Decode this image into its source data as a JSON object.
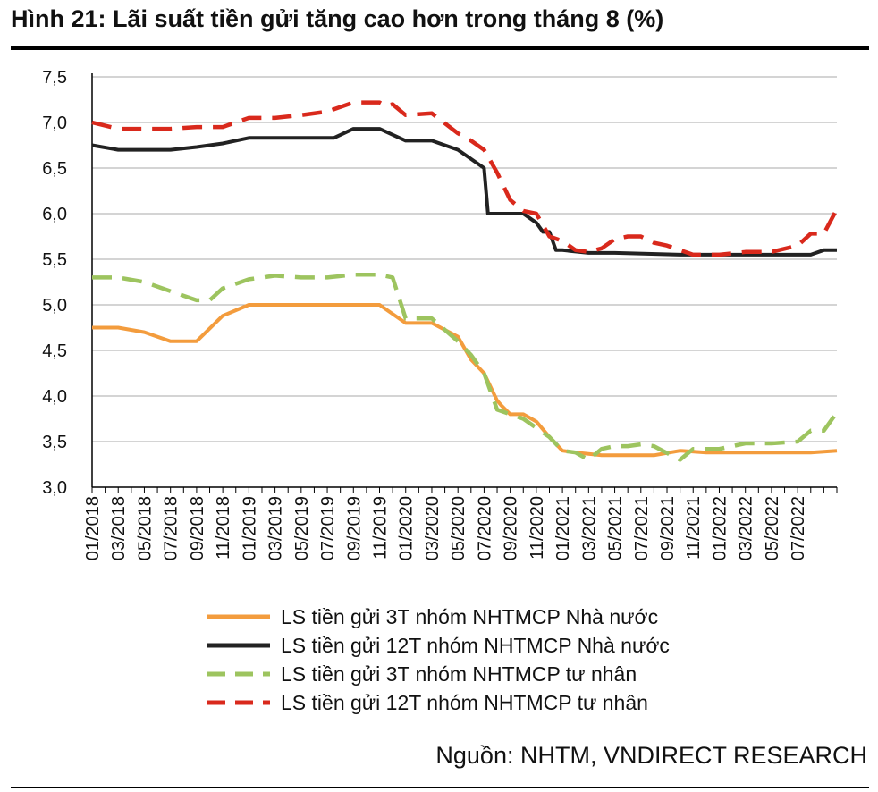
{
  "header": {
    "title": "Hình 21: Lãi suất tiền gửi tăng cao hơn trong tháng 8 (%)"
  },
  "footer": {
    "source": "Nguồn: NHTM, VNDIRECT RESEARCH"
  },
  "chart_data": {
    "type": "line",
    "ylim": [
      3.0,
      7.5
    ],
    "y_ticks": [
      "3,0",
      "3,5",
      "4,0",
      "4,5",
      "5,0",
      "5,5",
      "6,0",
      "6,5",
      "7,0",
      "7,5"
    ],
    "x_tick_labels": [
      "01/2018",
      "03/2018",
      "05/2018",
      "07/2018",
      "09/2018",
      "11/2018",
      "01/2019",
      "03/2019",
      "05/2019",
      "07/2019",
      "09/2019",
      "11/2019",
      "01/2020",
      "03/2020",
      "05/2020",
      "07/2020",
      "09/2020",
      "11/2020",
      "01/2021",
      "03/2021",
      "05/2021",
      "07/2021",
      "09/2021",
      "11/2021",
      "01/2022",
      "03/2022",
      "05/2022",
      "07/2022"
    ],
    "x_range": [
      0,
      57
    ],
    "grid": "horizontal",
    "legend_position": "bottom",
    "series": [
      {
        "name": "LS tiền gửi 3T nhóm NHTMCP Nhà nước",
        "color": "#f39c3d",
        "style": "solid",
        "x": [
          0,
          2,
          4,
          6,
          8,
          10,
          12,
          14,
          16,
          18,
          20,
          22,
          24,
          26,
          28,
          29,
          30,
          31,
          31.3,
          32,
          33,
          34,
          35,
          36,
          37,
          39,
          41,
          43,
          45,
          47,
          49,
          51,
          53,
          55,
          57
        ],
        "y": [
          4.75,
          4.75,
          4.7,
          4.6,
          4.6,
          4.88,
          5.0,
          5.0,
          5.0,
          5.0,
          5.0,
          5.0,
          4.8,
          4.8,
          4.65,
          4.4,
          4.25,
          3.95,
          3.9,
          3.8,
          3.8,
          3.72,
          3.55,
          3.4,
          3.38,
          3.35,
          3.35,
          3.35,
          3.4,
          3.38,
          3.38,
          3.38,
          3.38,
          3.38,
          3.4
        ]
      },
      {
        "name": "LS tiền gửi 12T nhóm NHTMCP Nhà nước",
        "color": "#222222",
        "style": "solid",
        "x": [
          0,
          2,
          6,
          8,
          10,
          12,
          14,
          16,
          18,
          18.5,
          20,
          22,
          24,
          26,
          28,
          30,
          30.3,
          31,
          33,
          34,
          34.5,
          35,
          35.5,
          36,
          38,
          40,
          45,
          50,
          55,
          56,
          57
        ],
        "y": [
          6.75,
          6.7,
          6.7,
          6.73,
          6.77,
          6.83,
          6.83,
          6.83,
          6.83,
          6.83,
          6.93,
          6.93,
          6.8,
          6.8,
          6.7,
          6.5,
          6.0,
          6.0,
          6.0,
          5.9,
          5.8,
          5.8,
          5.6,
          5.6,
          5.57,
          5.57,
          5.55,
          5.55,
          5.55,
          5.6,
          5.6
        ]
      },
      {
        "name": "LS tiền gửi 3T nhóm NHTMCP tư nhân",
        "color": "#9dc45f",
        "style": "dashed",
        "x": [
          0,
          2,
          4,
          6,
          8,
          9,
          10,
          12,
          14,
          16,
          18,
          20,
          22,
          23,
          24,
          26,
          28,
          29,
          30,
          31,
          32,
          33,
          35,
          36,
          37,
          38,
          39,
          40,
          41,
          42,
          43,
          45,
          46,
          48,
          50,
          52,
          54,
          55,
          56,
          57
        ],
        "y": [
          5.3,
          5.3,
          5.25,
          5.15,
          5.05,
          5.05,
          5.18,
          5.28,
          5.32,
          5.3,
          5.3,
          5.33,
          5.33,
          5.3,
          4.85,
          4.85,
          4.6,
          4.45,
          4.25,
          3.85,
          3.8,
          3.75,
          3.55,
          3.4,
          3.38,
          3.3,
          3.42,
          3.45,
          3.45,
          3.47,
          3.45,
          3.3,
          3.42,
          3.42,
          3.48,
          3.48,
          3.5,
          3.62,
          3.62,
          3.82
        ]
      },
      {
        "name": "LS tiền gửi 12T nhóm NHTMCP tư nhân",
        "color": "#d9291c",
        "style": "dashed",
        "x": [
          0,
          2,
          4,
          6,
          8,
          10,
          12,
          14,
          16,
          18,
          20,
          22,
          22.5,
          23,
          24,
          26,
          28,
          29,
          30,
          31,
          32,
          33,
          34,
          35,
          36,
          37,
          38,
          39,
          40,
          41,
          42,
          43,
          44,
          46,
          48,
          50,
          52,
          54,
          55,
          56,
          57
        ],
        "y": [
          7.0,
          6.93,
          6.93,
          6.93,
          6.95,
          6.95,
          7.05,
          7.05,
          7.08,
          7.12,
          7.22,
          7.22,
          7.18,
          7.2,
          7.08,
          7.1,
          6.88,
          6.8,
          6.7,
          6.45,
          6.15,
          6.03,
          6.0,
          5.75,
          5.7,
          5.6,
          5.58,
          5.62,
          5.72,
          5.75,
          5.75,
          5.68,
          5.65,
          5.55,
          5.55,
          5.58,
          5.58,
          5.65,
          5.78,
          5.78,
          6.05
        ]
      }
    ]
  }
}
